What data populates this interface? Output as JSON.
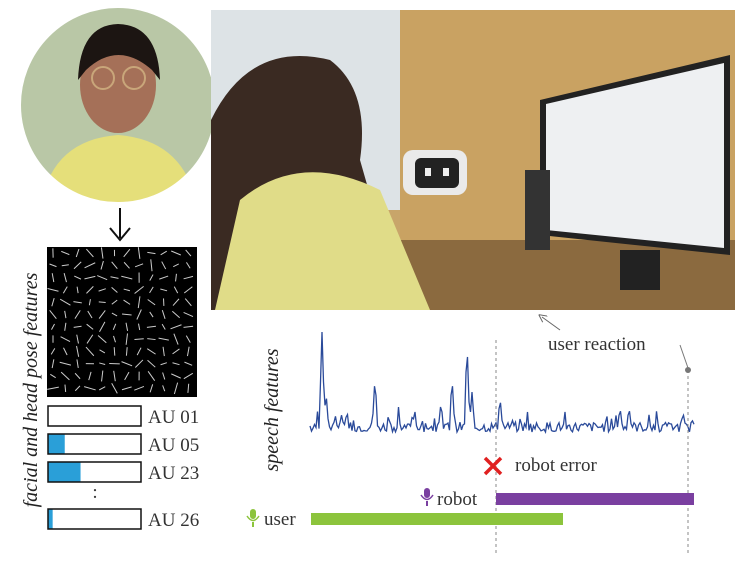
{
  "facial_label": "facial and head pose features",
  "speech_label": "speech features",
  "action_units": [
    {
      "label": "AU 01",
      "intensity": 0
    },
    {
      "label": "AU 05",
      "intensity": 0.18
    },
    {
      "label": "AU 23",
      "intensity": 0.35
    },
    {
      "label": "AU 26",
      "intensity": 0.05
    }
  ],
  "ellipsis": ":",
  "user_reaction": "user reaction",
  "robot_error": "robot error",
  "robot": "robot",
  "user": "user"
}
